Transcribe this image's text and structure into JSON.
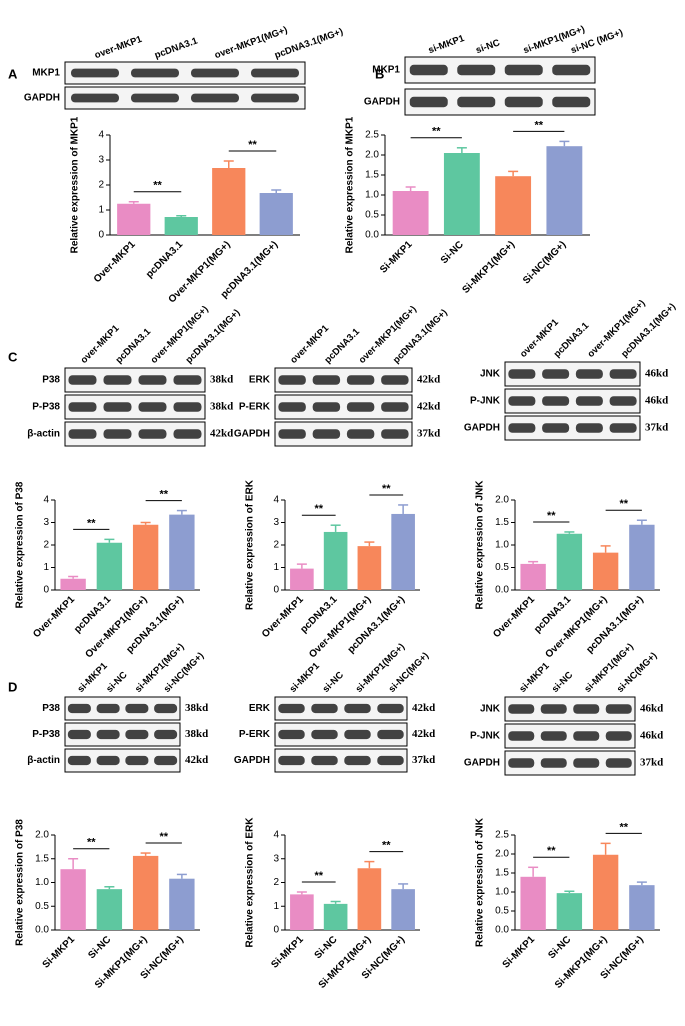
{
  "panel_labels": [
    "A",
    "B",
    "C",
    "D"
  ],
  "blots": [
    {
      "lanes": [
        "over-MKP1",
        "pcDNA3.1",
        "over-MKP1(MG+)",
        "pcDNA3.1(MG+)"
      ],
      "rows": [
        "MKP1",
        "GAPDH"
      ]
    },
    {
      "lanes": [
        "si-MKP1",
        "si-NC",
        "si-MKP1(MG+)",
        "si-NC (MG+)"
      ],
      "rows": [
        "MKP1",
        "GAPDH"
      ]
    },
    {
      "lanes": [
        "over-MKP1",
        "pcDNA3.1",
        "over-MKP1(MG+)",
        "pcDNA3.1(MG+)"
      ],
      "rows": [
        "P38",
        "P-P38",
        "β-actin"
      ],
      "sizes": [
        "38kd",
        "38kd",
        "42kd"
      ]
    },
    {
      "lanes": [
        "over-MKP1",
        "pcDNA3.1",
        "over-MKP1(MG+)",
        "pcDNA3.1(MG+)"
      ],
      "rows": [
        "ERK",
        "P-ERK",
        "GAPDH"
      ],
      "sizes": [
        "42kd",
        "42kd",
        "37kd"
      ]
    },
    {
      "lanes": [
        "over-MKP1",
        "pcDNA3.1",
        "over-MKP1(MG+)",
        "pcDNA3.1(MG+)"
      ],
      "rows": [
        "JNK",
        "P-JNK",
        "GAPDH"
      ],
      "sizes": [
        "46kd",
        "46kd",
        "37kd"
      ]
    },
    {
      "lanes": [
        "si-MKP1",
        "si-NC",
        "si-MKP1(MG+)",
        "si-NC(MG+)"
      ],
      "rows": [
        "P38",
        "P-P38",
        "β-actin"
      ],
      "sizes": [
        "38kd",
        "38kd",
        "42kd"
      ]
    },
    {
      "lanes": [
        "si-MKP1",
        "si-NC",
        "si-MKP1(MG+)",
        "si-NC(MG+)"
      ],
      "rows": [
        "ERK",
        "P-ERK",
        "GAPDH"
      ],
      "sizes": [
        "42kd",
        "42kd",
        "37kd"
      ]
    },
    {
      "lanes": [
        "si-MKP1",
        "si-NC",
        "si-MKP1(MG+)",
        "si-NC(MG+)"
      ],
      "rows": [
        "JNK",
        "P-JNK",
        "GAPDH"
      ],
      "sizes": [
        "46kd",
        "46kd",
        "37kd"
      ]
    }
  ],
  "chart_data": [
    {
      "type": "bar",
      "y_label": "Relative expression of MKP1",
      "categories": [
        "Over-MKP1",
        "pcDNA3.1",
        "Over-MKP1(MG+)",
        "pcDNA3.1(MG+)"
      ],
      "values": [
        1.25,
        0.72,
        2.68,
        1.68
      ],
      "errors": [
        0.08,
        0.05,
        0.28,
        0.12
      ],
      "colors": [
        "#e98cc4",
        "#5ec7a0",
        "#f7875b",
        "#8d9dd0"
      ],
      "ylim": [
        0,
        4
      ],
      "yticks": [
        0,
        1,
        2,
        3,
        4
      ],
      "comparisons": [
        {
          "label": "**",
          "between": [
            0,
            1
          ]
        },
        {
          "label": "**",
          "between": [
            2,
            3
          ]
        }
      ]
    },
    {
      "type": "bar",
      "y_label": "Relative expression of MKP1",
      "categories": [
        "Si-MKP1",
        "Si-NC",
        "Si-MKP1(MG+)",
        "Si-NC(MG+)"
      ],
      "values": [
        1.1,
        2.05,
        1.47,
        2.22
      ],
      "errors": [
        0.1,
        0.13,
        0.12,
        0.12
      ],
      "colors": [
        "#e98cc4",
        "#5ec7a0",
        "#f7875b",
        "#8d9dd0"
      ],
      "ylim": [
        0,
        2.5
      ],
      "yticks": [
        {
          "value": 0,
          "label": "0.0"
        },
        0.5,
        {
          "value": 1,
          "label": "1.0"
        },
        1.5,
        {
          "value": 2,
          "label": "2.0"
        },
        2.5
      ],
      "comparisons": [
        {
          "label": "**",
          "between": [
            0,
            1
          ]
        },
        {
          "label": "**",
          "between": [
            2,
            3
          ]
        }
      ]
    },
    {
      "type": "bar",
      "y_label": "Relative expression of P38",
      "categories": [
        "Over-MKP1",
        "pcDNA3.1",
        "Over-MKP1(MG+)",
        "pcDNA3.1(MG+)"
      ],
      "values": [
        0.5,
        2.1,
        2.9,
        3.35
      ],
      "errors": [
        0.1,
        0.15,
        0.1,
        0.18
      ],
      "colors": [
        "#e98cc4",
        "#5ec7a0",
        "#f7875b",
        "#8d9dd0"
      ],
      "ylim": [
        0,
        4
      ],
      "yticks": [
        0,
        1,
        2,
        3,
        4
      ],
      "comparisons": [
        {
          "label": "**",
          "between": [
            0,
            1
          ]
        },
        {
          "label": "**",
          "between": [
            2,
            3
          ]
        }
      ]
    },
    {
      "type": "bar",
      "y_label": "Relative expression of ERK",
      "categories": [
        "Over-MKP1",
        "pcDNA3.1",
        "Over-MKP1(MG+)",
        "pcDNA3.1(MG+)"
      ],
      "values": [
        0.95,
        2.58,
        1.95,
        3.38
      ],
      "errors": [
        0.2,
        0.3,
        0.18,
        0.4
      ],
      "colors": [
        "#e98cc4",
        "#5ec7a0",
        "#f7875b",
        "#8d9dd0"
      ],
      "ylim": [
        0,
        4
      ],
      "yticks": [
        0,
        1,
        2,
        3,
        4
      ],
      "comparisons": [
        {
          "label": "**",
          "between": [
            0,
            1
          ]
        },
        {
          "label": "**",
          "between": [
            2,
            3
          ]
        }
      ]
    },
    {
      "type": "bar",
      "y_label": "Relative expression of JNK",
      "categories": [
        "Over-MKP1",
        "pcDNA3.1",
        "Over-MKP1(MG+)",
        "pcDNA3.1(MG+)"
      ],
      "values": [
        0.58,
        1.25,
        0.83,
        1.45
      ],
      "errors": [
        0.05,
        0.04,
        0.15,
        0.1
      ],
      "colors": [
        "#e98cc4",
        "#5ec7a0",
        "#f7875b",
        "#8d9dd0"
      ],
      "ylim": [
        0,
        2
      ],
      "yticks": [
        {
          "value": 0,
          "label": "0.0"
        },
        0.5,
        {
          "value": 1,
          "label": "1.0"
        },
        1.5,
        {
          "value": 2,
          "label": "2.0"
        }
      ],
      "comparisons": [
        {
          "label": "**",
          "between": [
            0,
            1
          ]
        },
        {
          "label": "**",
          "between": [
            2,
            3
          ]
        }
      ]
    },
    {
      "type": "bar",
      "y_label": "Relative expression of P38",
      "categories": [
        "Si-MKP1",
        "Si-NC",
        "Si-MKP1(MG+)",
        "Si-NC(MG+)"
      ],
      "values": [
        1.28,
        0.86,
        1.56,
        1.08
      ],
      "errors": [
        0.22,
        0.05,
        0.06,
        0.09
      ],
      "colors": [
        "#e98cc4",
        "#5ec7a0",
        "#f7875b",
        "#8d9dd0"
      ],
      "ylim": [
        0,
        2
      ],
      "yticks": [
        {
          "value": 0,
          "label": "0.0"
        },
        0.5,
        {
          "value": 1,
          "label": "1.0"
        },
        1.5,
        {
          "value": 2,
          "label": "2.0"
        }
      ],
      "comparisons": [
        {
          "label": "**",
          "between": [
            0,
            1
          ]
        },
        {
          "label": "**",
          "between": [
            2,
            3
          ]
        }
      ]
    },
    {
      "type": "bar",
      "y_label": "Relative expression of ERK",
      "categories": [
        "Si-MKP1",
        "Si-NC",
        "Si-MKP1(MG+)",
        "Si-NC(MG+)"
      ],
      "values": [
        1.5,
        1.1,
        2.6,
        1.72
      ],
      "errors": [
        0.1,
        0.1,
        0.28,
        0.22
      ],
      "colors": [
        "#e98cc4",
        "#5ec7a0",
        "#f7875b",
        "#8d9dd0"
      ],
      "ylim": [
        0,
        4
      ],
      "yticks": [
        0,
        1,
        2,
        3,
        4
      ],
      "comparisons": [
        {
          "label": "**",
          "between": [
            0,
            1
          ]
        },
        {
          "label": "**",
          "between": [
            2,
            3
          ]
        }
      ]
    },
    {
      "type": "bar",
      "y_label": "Relative expression of JNK",
      "categories": [
        "Si-MKP1",
        "Si-NC",
        "Si-MKP1(MG+)",
        "Si-NC(MG+)"
      ],
      "values": [
        1.4,
        0.97,
        1.98,
        1.18
      ],
      "errors": [
        0.25,
        0.05,
        0.3,
        0.08
      ],
      "colors": [
        "#e98cc4",
        "#5ec7a0",
        "#f7875b",
        "#8d9dd0"
      ],
      "ylim": [
        0,
        2.5
      ],
      "yticks": [
        {
          "value": 0,
          "label": "0.0"
        },
        0.5,
        {
          "value": 1,
          "label": "1.0"
        },
        1.5,
        {
          "value": 2,
          "label": "2.0"
        },
        2.5
      ],
      "comparisons": [
        {
          "label": "**",
          "between": [
            0,
            1
          ]
        },
        {
          "label": "**",
          "between": [
            2,
            3
          ]
        }
      ]
    }
  ]
}
